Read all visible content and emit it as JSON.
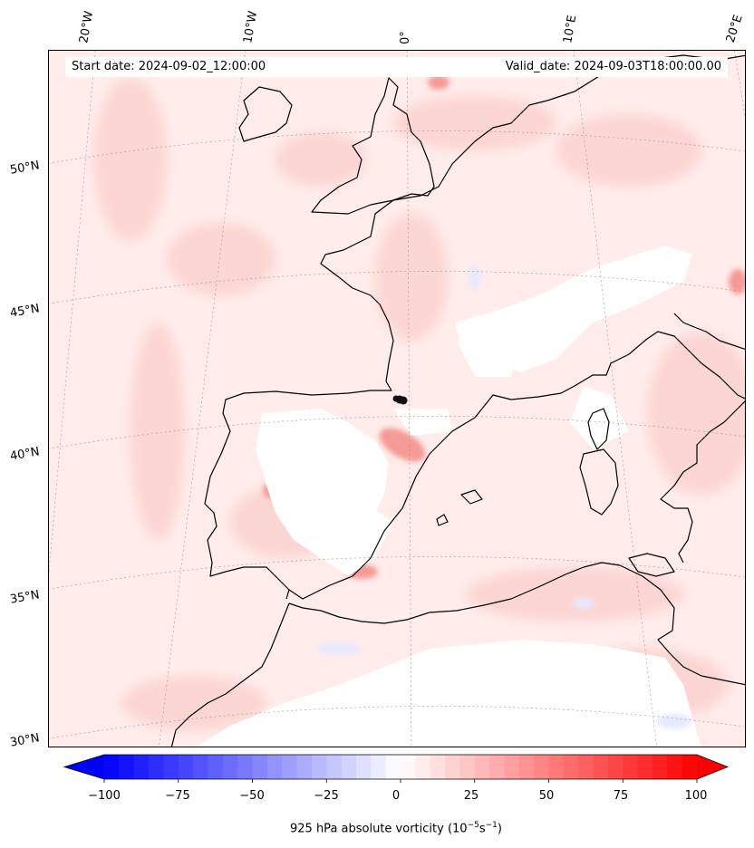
{
  "map": {
    "start_date": "Start date: 2024-09-02_12:00:00",
    "valid_date": "Valid_date: 2024-09-03T18:00:00.00",
    "longitude_labels": [
      "20°W",
      "10°W",
      "0°",
      "10°E",
      "20°E"
    ],
    "latitude_labels": [
      "50°N",
      "45°N",
      "40°N",
      "35°N",
      "30°N"
    ],
    "marker": "dark storm-centre dots near 0°, 42°N"
  },
  "colorbar": {
    "min": -100,
    "max": 100,
    "ticks": [
      "−100",
      "−75",
      "−50",
      "−25",
      "0",
      "25",
      "50",
      "75",
      "100"
    ],
    "tick_values": [
      -100,
      -75,
      -50,
      -25,
      0,
      25,
      50,
      75,
      100
    ],
    "color_low": "#0000ff",
    "color_mid": "#ffffff",
    "color_high": "#ff0000",
    "title_prefix": "925 hPa absolute vorticity (10",
    "title_exp1": "−5",
    "title_mid": "s",
    "title_exp2": "−1",
    "title_suffix": ")"
  }
}
